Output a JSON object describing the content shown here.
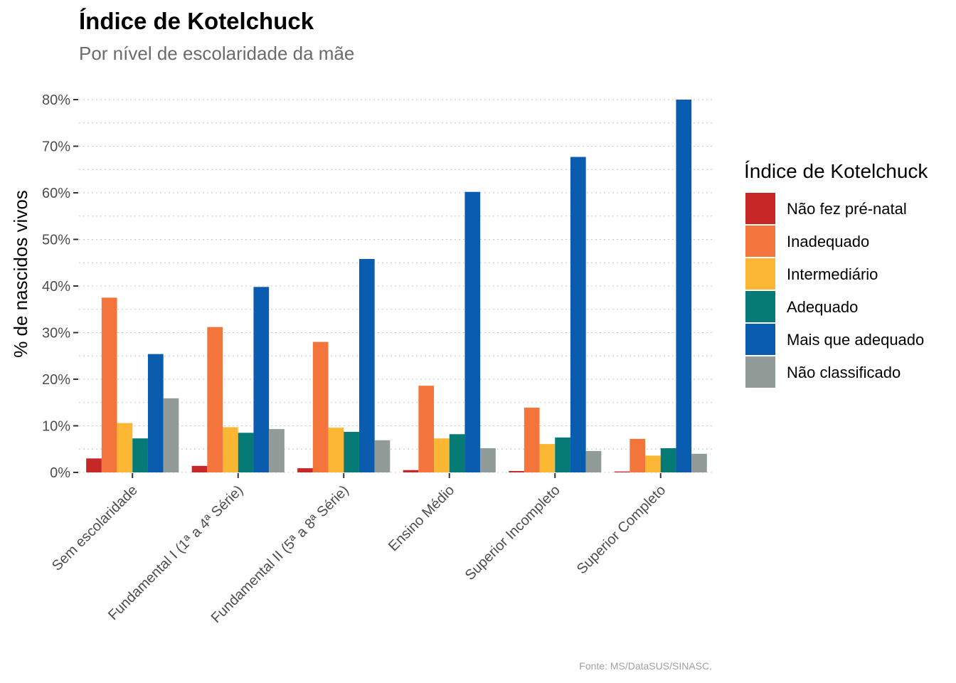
{
  "chart_data": {
    "type": "bar",
    "title": "Índice de Kotelchuck",
    "subtitle": "Por nível de escolaridade da mãe",
    "ylabel": "% de nascidos vivos",
    "caption": "Fonte: MS/DataSUS/SINASC.",
    "ylim": [
      0,
      80
    ],
    "yticks": [
      0,
      10,
      20,
      30,
      40,
      50,
      60,
      70,
      80
    ],
    "ytick_labels": [
      "0%",
      "10%",
      "20%",
      "30%",
      "40%",
      "50%",
      "60%",
      "70%",
      "80%"
    ],
    "grid": "dotted",
    "legend_title": "Índice de Kotelchuck",
    "legend_position": "right",
    "categories": [
      "Sem escolaridade",
      "Fundamental I (1ª a 4ª Série)",
      "Fundamental II (5ª a 8ª Série)",
      "Ensino Médio",
      "Superior Incompleto",
      "Superior Completo"
    ],
    "series": [
      {
        "name": "Não fez pré-natal",
        "color": "#c62828",
        "values": [
          3.0,
          1.4,
          0.9,
          0.5,
          0.3,
          0.2
        ]
      },
      {
        "name": "Inadequado",
        "color": "#f4753b",
        "values": [
          37.5,
          31.2,
          28.0,
          18.6,
          13.9,
          7.2
        ]
      },
      {
        "name": "Intermediário",
        "color": "#fbb733",
        "values": [
          10.6,
          9.7,
          9.6,
          7.3,
          6.1,
          3.6
        ]
      },
      {
        "name": "Adequado",
        "color": "#067a75",
        "values": [
          7.3,
          8.5,
          8.7,
          8.2,
          7.5,
          5.2
        ]
      },
      {
        "name": "Mais que adequado",
        "color": "#0a5cae",
        "values": [
          25.4,
          39.8,
          45.8,
          60.2,
          67.7,
          80.0
        ]
      },
      {
        "name": "Não classificado",
        "color": "#919b98",
        "values": [
          15.9,
          9.3,
          6.9,
          5.2,
          4.6,
          4.0
        ]
      }
    ]
  }
}
